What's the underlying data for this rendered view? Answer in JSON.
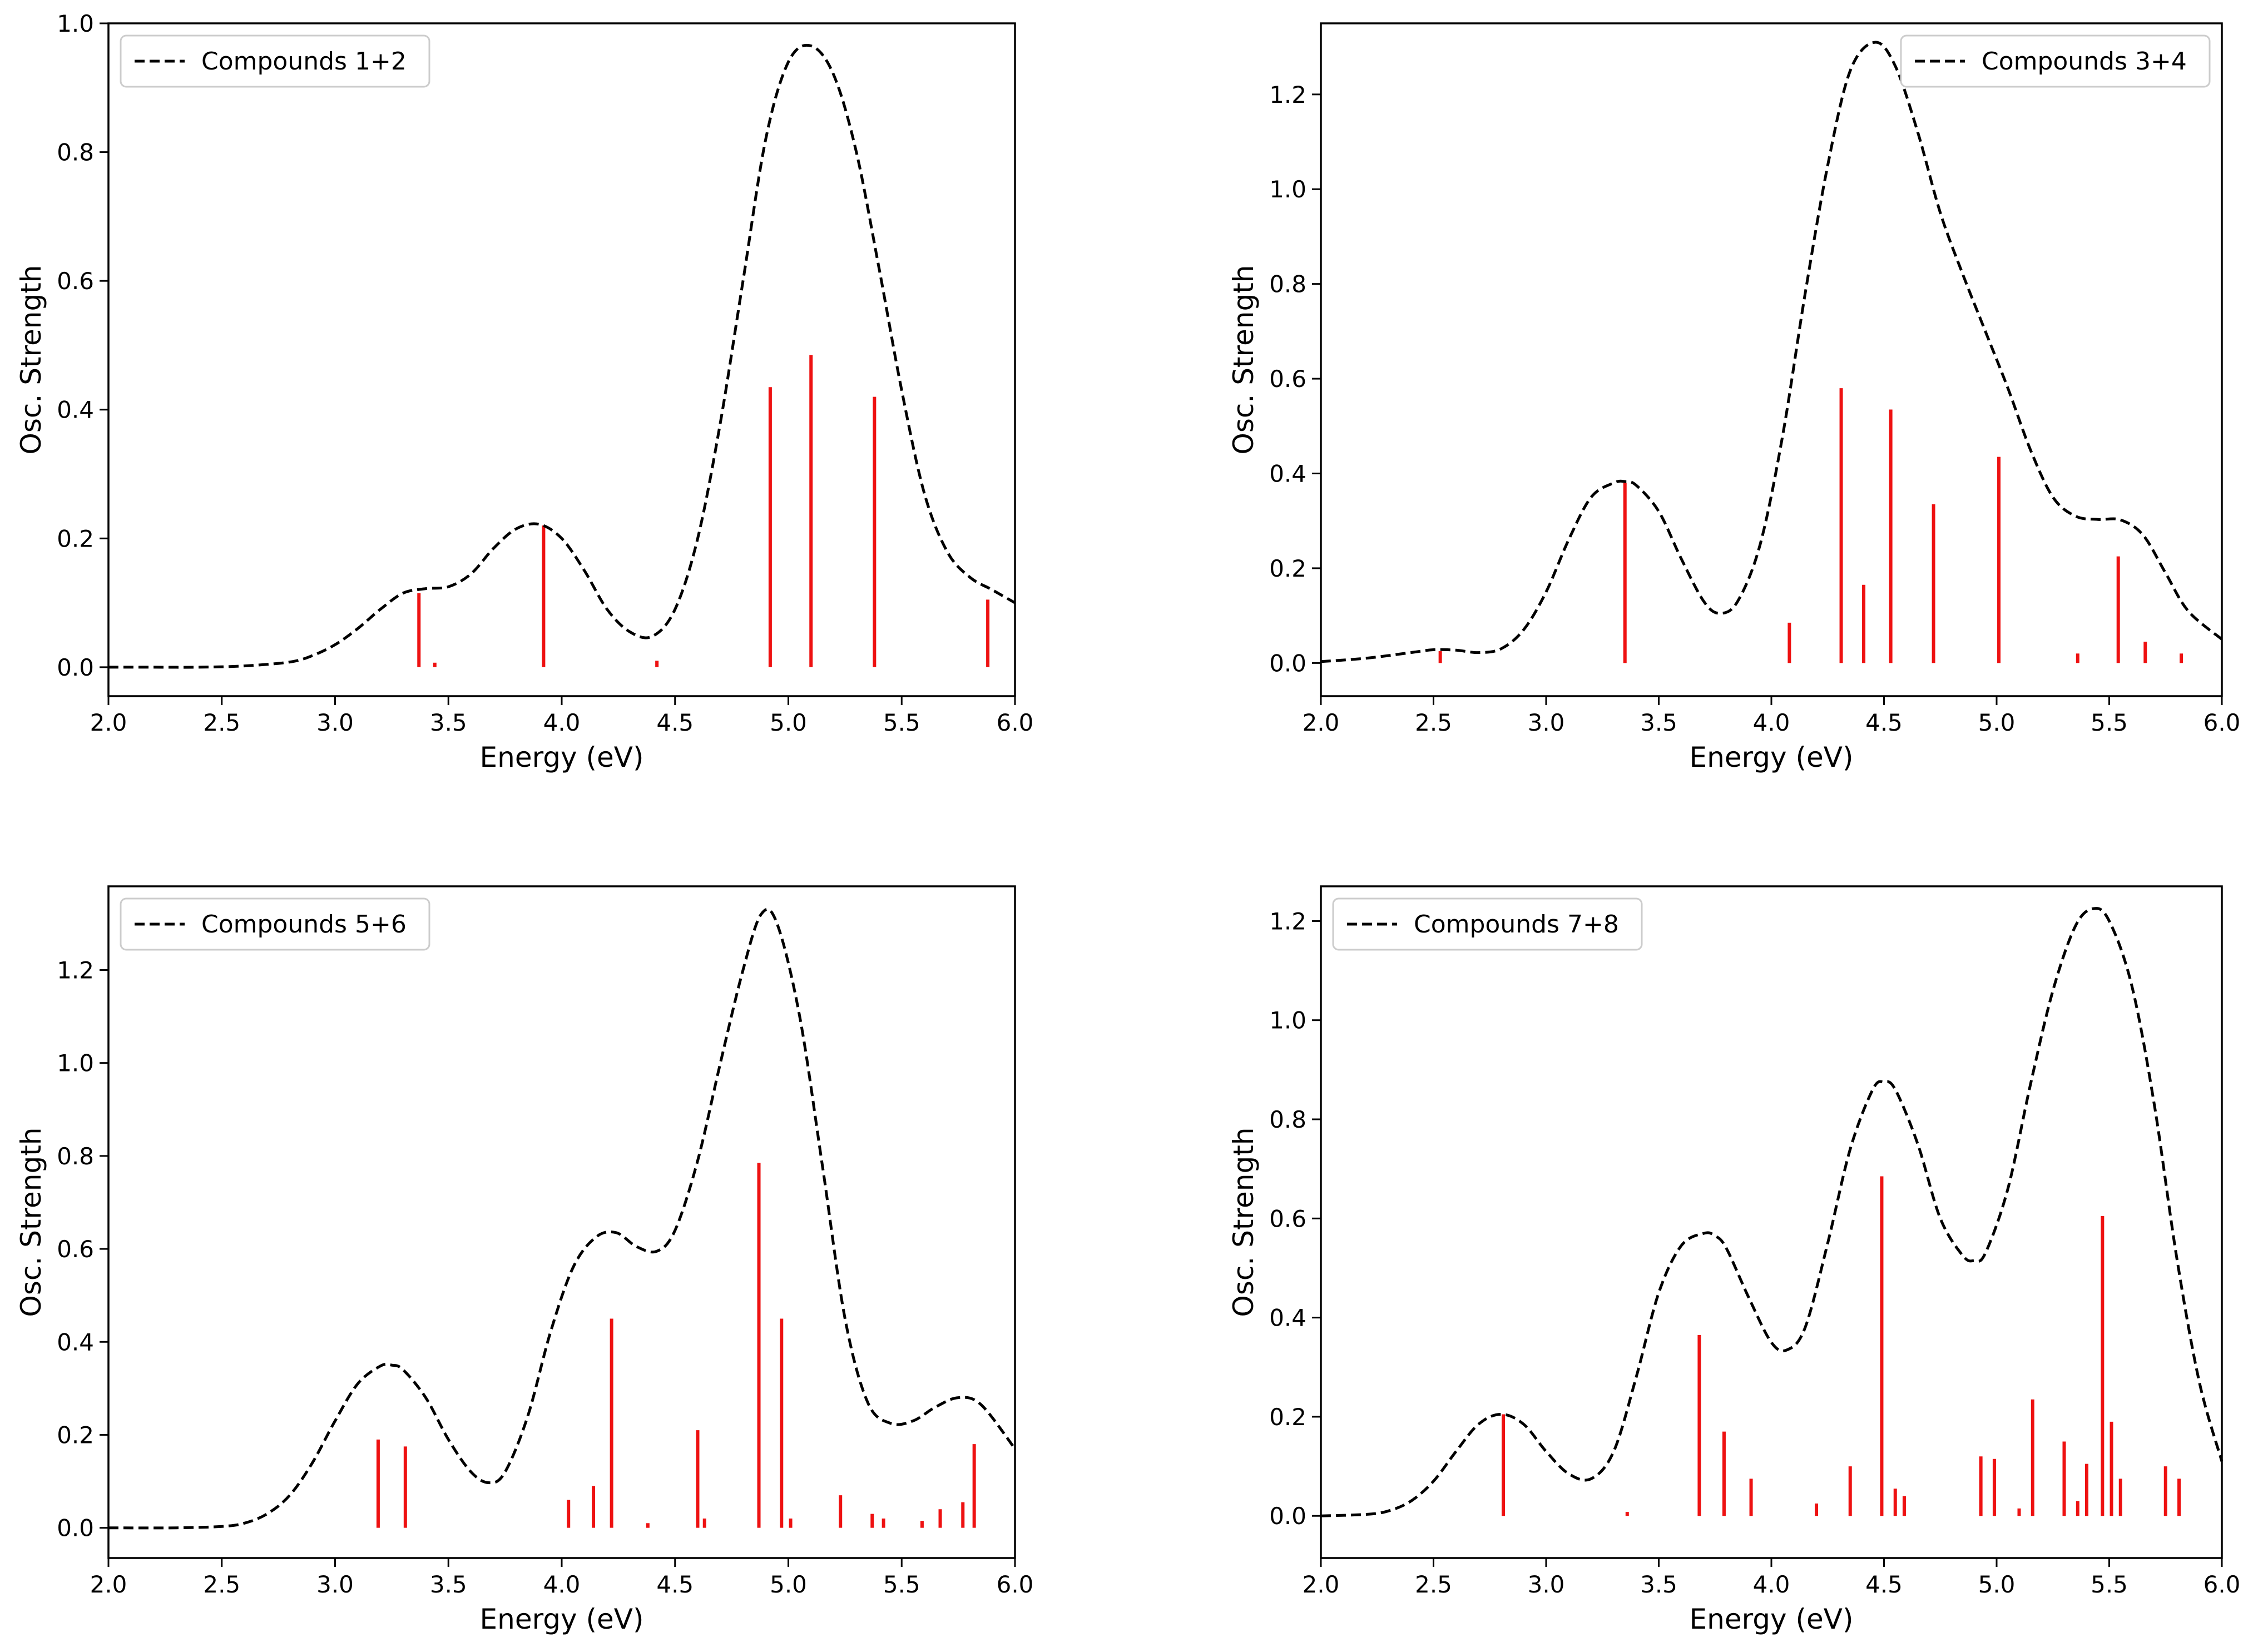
{
  "chart_data": [
    {
      "type": "line",
      "title": "",
      "xlabel": "Energy (eV)",
      "ylabel": "Osc. Strength",
      "xlim": [
        2.0,
        6.0
      ],
      "ylim": [
        -0.045,
        1.0
      ],
      "xticks": [
        2.0,
        2.5,
        3.0,
        3.5,
        4.0,
        4.5,
        5.0,
        5.5,
        6.0
      ],
      "xtick_labels": [
        "2.0",
        "2.5",
        "3.0",
        "3.5",
        "4.0",
        "4.5",
        "5.0",
        "5.5",
        "6.0"
      ],
      "yticks": [
        0.0,
        0.2,
        0.4,
        0.6,
        0.8,
        1.0
      ],
      "ytick_labels": [
        "0.0",
        "0.2",
        "0.4",
        "0.6",
        "0.8",
        "1.0"
      ],
      "legend": {
        "label": "Compounds 1+2",
        "position": "upper-left"
      },
      "series": [
        {
          "name": "Compounds 1+2",
          "style": "dashed",
          "color": "#000000",
          "x": [
            2.0,
            2.2,
            2.4,
            2.6,
            2.8,
            2.9,
            3.0,
            3.1,
            3.2,
            3.3,
            3.4,
            3.5,
            3.6,
            3.7,
            3.8,
            3.9,
            4.0,
            4.1,
            4.2,
            4.3,
            4.4,
            4.5,
            4.6,
            4.7,
            4.8,
            4.9,
            5.0,
            5.1,
            5.2,
            5.3,
            5.4,
            5.5,
            5.6,
            5.7,
            5.8,
            5.9,
            6.0
          ],
          "y": [
            0.0,
            0.0,
            0.0,
            0.002,
            0.008,
            0.018,
            0.035,
            0.06,
            0.09,
            0.115,
            0.122,
            0.125,
            0.145,
            0.185,
            0.215,
            0.222,
            0.2,
            0.15,
            0.09,
            0.055,
            0.048,
            0.09,
            0.2,
            0.38,
            0.6,
            0.82,
            0.94,
            0.965,
            0.92,
            0.8,
            0.62,
            0.43,
            0.27,
            0.18,
            0.14,
            0.12,
            0.1
          ]
        }
      ],
      "sticks": {
        "color": "#ee1111",
        "x": [
          3.37,
          3.44,
          3.92,
          4.42,
          4.92,
          5.1,
          5.38,
          5.88
        ],
        "y": [
          0.115,
          0.007,
          0.22,
          0.01,
          0.435,
          0.485,
          0.42,
          0.105
        ]
      }
    },
    {
      "type": "line",
      "title": "",
      "xlabel": "Energy (eV)",
      "ylabel": "Osc. Strength",
      "xlim": [
        2.0,
        6.0
      ],
      "ylim": [
        -0.07,
        1.35
      ],
      "xticks": [
        2.0,
        2.5,
        3.0,
        3.5,
        4.0,
        4.5,
        5.0,
        5.5,
        6.0
      ],
      "xtick_labels": [
        "2.0",
        "2.5",
        "3.0",
        "3.5",
        "4.0",
        "4.5",
        "5.0",
        "5.5",
        "6.0"
      ],
      "yticks": [
        0.0,
        0.2,
        0.4,
        0.6,
        0.8,
        1.0,
        1.2
      ],
      "ytick_labels": [
        "0.0",
        "0.2",
        "0.4",
        "0.6",
        "0.8",
        "1.0",
        "1.2"
      ],
      "legend": {
        "label": "Compounds 3+4",
        "position": "upper-right"
      },
      "series": [
        {
          "name": "Compounds 3+4",
          "style": "dashed",
          "color": "#000000",
          "x": [
            2.0,
            2.2,
            2.4,
            2.5,
            2.6,
            2.7,
            2.8,
            2.9,
            3.0,
            3.1,
            3.2,
            3.3,
            3.35,
            3.4,
            3.5,
            3.6,
            3.7,
            3.77,
            3.85,
            3.95,
            4.05,
            4.15,
            4.25,
            4.35,
            4.46,
            4.55,
            4.65,
            4.75,
            4.85,
            4.95,
            5.05,
            5.15,
            5.25,
            5.35,
            5.45,
            5.55,
            5.65,
            5.75,
            5.85,
            6.0
          ],
          "y": [
            0.003,
            0.01,
            0.022,
            0.028,
            0.027,
            0.022,
            0.03,
            0.07,
            0.15,
            0.26,
            0.35,
            0.38,
            0.383,
            0.375,
            0.32,
            0.22,
            0.13,
            0.105,
            0.13,
            0.25,
            0.48,
            0.78,
            1.05,
            1.25,
            1.31,
            1.26,
            1.12,
            0.95,
            0.82,
            0.7,
            0.58,
            0.45,
            0.35,
            0.31,
            0.303,
            0.302,
            0.27,
            0.19,
            0.11,
            0.05
          ]
        }
      ],
      "sticks": {
        "color": "#ee1111",
        "x": [
          2.53,
          3.35,
          4.08,
          4.31,
          4.41,
          4.53,
          4.72,
          5.01,
          5.36,
          5.54,
          5.66,
          5.82
        ],
        "y": [
          0.025,
          0.38,
          0.085,
          0.58,
          0.165,
          0.535,
          0.335,
          0.435,
          0.02,
          0.225,
          0.045,
          0.02
        ]
      }
    },
    {
      "type": "line",
      "title": "",
      "xlabel": "Energy (eV)",
      "ylabel": "Osc. Strength",
      "xlim": [
        2.0,
        6.0
      ],
      "ylim": [
        -0.065,
        1.38
      ],
      "xticks": [
        2.0,
        2.5,
        3.0,
        3.5,
        4.0,
        4.5,
        5.0,
        5.5,
        6.0
      ],
      "xtick_labels": [
        "2.0",
        "2.5",
        "3.0",
        "3.5",
        "4.0",
        "4.5",
        "5.0",
        "5.5",
        "6.0"
      ],
      "yticks": [
        0.0,
        0.2,
        0.4,
        0.6,
        0.8,
        1.0,
        1.2
      ],
      "ytick_labels": [
        "0.0",
        "0.2",
        "0.4",
        "0.6",
        "0.8",
        "1.0",
        "1.2"
      ],
      "legend": {
        "label": "Compounds 5+6",
        "position": "upper-left"
      },
      "series": [
        {
          "name": "Compounds 5+6",
          "style": "dashed",
          "color": "#000000",
          "x": [
            2.0,
            2.3,
            2.5,
            2.6,
            2.7,
            2.8,
            2.9,
            3.0,
            3.1,
            3.2,
            3.25,
            3.3,
            3.4,
            3.5,
            3.6,
            3.68,
            3.75,
            3.85,
            3.95,
            4.05,
            4.15,
            4.24,
            4.33,
            4.42,
            4.5,
            4.6,
            4.7,
            4.8,
            4.88,
            4.95,
            5.05,
            5.15,
            5.25,
            5.35,
            5.45,
            5.55,
            5.65,
            5.75,
            5.85,
            6.0
          ],
          "y": [
            0.0,
            0.0,
            0.003,
            0.01,
            0.03,
            0.07,
            0.14,
            0.23,
            0.31,
            0.348,
            0.35,
            0.34,
            0.28,
            0.19,
            0.12,
            0.097,
            0.12,
            0.24,
            0.42,
            0.56,
            0.625,
            0.635,
            0.605,
            0.595,
            0.64,
            0.79,
            1.0,
            1.2,
            1.32,
            1.3,
            1.1,
            0.78,
            0.45,
            0.27,
            0.225,
            0.23,
            0.26,
            0.28,
            0.265,
            0.17
          ]
        }
      ],
      "sticks": {
        "color": "#ee1111",
        "x": [
          3.19,
          3.31,
          4.03,
          4.14,
          4.22,
          4.38,
          4.6,
          4.63,
          4.87,
          4.97,
          5.01,
          5.23,
          5.37,
          5.42,
          5.59,
          5.67,
          5.77,
          5.82
        ],
        "y": [
          0.19,
          0.175,
          0.06,
          0.09,
          0.45,
          0.01,
          0.21,
          0.02,
          0.785,
          0.45,
          0.02,
          0.07,
          0.03,
          0.02,
          0.015,
          0.04,
          0.055,
          0.18
        ]
      }
    },
    {
      "type": "line",
      "title": "",
      "xlabel": "Energy (eV)",
      "ylabel": "Osc. Strength",
      "xlim": [
        2.0,
        6.0
      ],
      "ylim": [
        -0.085,
        1.27
      ],
      "xticks": [
        2.0,
        2.5,
        3.0,
        3.5,
        4.0,
        4.5,
        5.0,
        5.5,
        6.0
      ],
      "xtick_labels": [
        "2.0",
        "2.5",
        "3.0",
        "3.5",
        "4.0",
        "4.5",
        "5.0",
        "5.5",
        "6.0"
      ],
      "yticks": [
        0.0,
        0.2,
        0.4,
        0.6,
        0.8,
        1.0,
        1.2
      ],
      "ytick_labels": [
        "0.0",
        "0.2",
        "0.4",
        "0.6",
        "0.8",
        "1.0",
        "1.2"
      ],
      "legend": {
        "label": "Compounds 7+8",
        "position": "upper-left"
      },
      "series": [
        {
          "name": "Compounds 7+8",
          "style": "dashed",
          "color": "#000000",
          "x": [
            2.0,
            2.2,
            2.3,
            2.4,
            2.5,
            2.6,
            2.7,
            2.8,
            2.9,
            3.0,
            3.1,
            3.2,
            3.3,
            3.4,
            3.5,
            3.6,
            3.7,
            3.75,
            3.8,
            3.9,
            4.0,
            4.07,
            4.15,
            4.25,
            4.35,
            4.45,
            4.5,
            4.55,
            4.65,
            4.75,
            4.85,
            4.9,
            4.95,
            5.05,
            5.15,
            5.25,
            5.35,
            5.43,
            5.5,
            5.6,
            5.7,
            5.8,
            5.9,
            6.0
          ],
          "y": [
            0.0,
            0.003,
            0.01,
            0.03,
            0.07,
            0.13,
            0.185,
            0.205,
            0.185,
            0.13,
            0.085,
            0.075,
            0.13,
            0.28,
            0.45,
            0.545,
            0.57,
            0.565,
            0.54,
            0.44,
            0.35,
            0.335,
            0.38,
            0.55,
            0.74,
            0.86,
            0.875,
            0.86,
            0.75,
            0.6,
            0.525,
            0.515,
            0.53,
            0.66,
            0.87,
            1.06,
            1.19,
            1.225,
            1.2,
            1.07,
            0.83,
            0.52,
            0.27,
            0.11
          ]
        }
      ],
      "sticks": {
        "color": "#ee1111",
        "x": [
          2.81,
          3.36,
          3.68,
          3.79,
          3.91,
          4.2,
          4.35,
          4.49,
          4.55,
          4.59,
          4.93,
          4.99,
          5.1,
          5.16,
          5.3,
          5.36,
          5.4,
          5.47,
          5.51,
          5.55,
          5.75,
          5.81
        ],
        "y": [
          0.205,
          0.008,
          0.365,
          0.17,
          0.075,
          0.025,
          0.1,
          0.685,
          0.055,
          0.04,
          0.12,
          0.115,
          0.015,
          0.235,
          0.15,
          0.03,
          0.105,
          0.605,
          0.19,
          0.075,
          0.1,
          0.075
        ]
      }
    }
  ]
}
